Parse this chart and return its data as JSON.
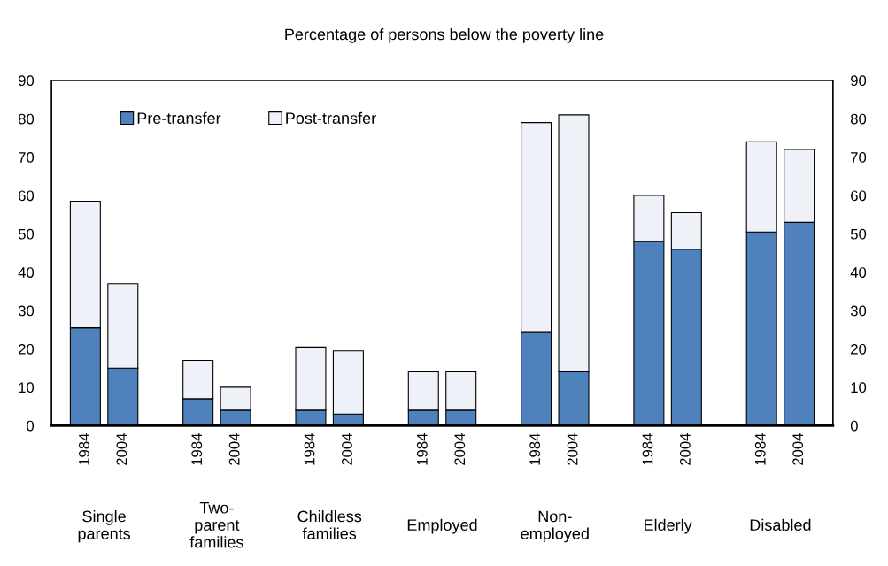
{
  "chart_data": {
    "type": "bar",
    "title": "Percentage of persons below the poverty line",
    "categories": [
      "1984",
      "2004",
      "1984",
      "2004",
      "1984",
      "2004",
      "1984",
      "2004",
      "1984",
      "2004",
      "1984",
      "2004",
      "1984",
      "2004"
    ],
    "annotations": [
      "Single\nparents",
      "Two-\nparent\nfamilies",
      "Childless\nfamilies",
      "Employed",
      "Non-\nemployed",
      "Elderly",
      "Disabled"
    ],
    "stacked": true,
    "series": [
      {
        "name": "Pre-transfer",
        "color": "#4f81bd",
        "values": [
          25.5,
          15,
          7,
          4,
          4,
          3,
          4,
          4,
          24.5,
          14,
          48,
          46,
          50.5,
          53
        ]
      },
      {
        "name": "Post-transfer",
        "color": "#eef1f8",
        "values": [
          33,
          22,
          10,
          6,
          16.5,
          16.5,
          10,
          10,
          54.5,
          67,
          12,
          9.5,
          23.5,
          19
        ]
      }
    ],
    "ylim": [
      0,
      90
    ],
    "yticks": [
      0,
      10,
      20,
      30,
      40,
      50,
      60,
      70,
      80,
      90
    ],
    "y2lim": [
      0,
      90
    ],
    "y2ticks": [
      0,
      10,
      20,
      30,
      40,
      50,
      60,
      70,
      80,
      90
    ],
    "legend": "top left",
    "grid": false
  }
}
